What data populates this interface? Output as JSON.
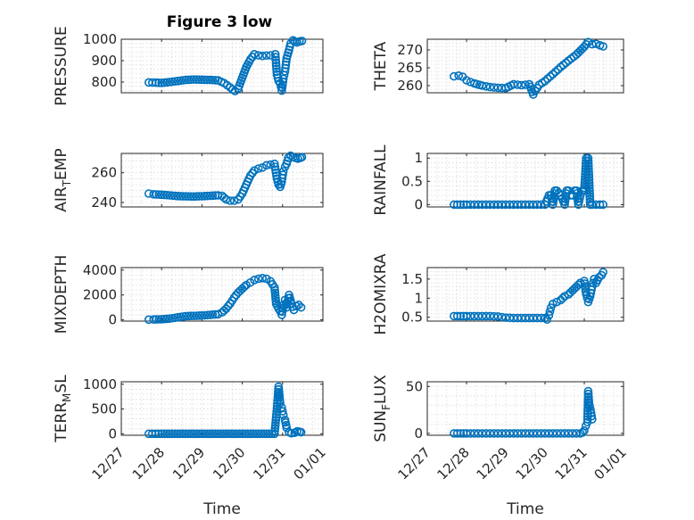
{
  "figure": {
    "title": "Figure 3 low"
  },
  "colors": {
    "marker": "#0072BD",
    "axis": "#262626"
  },
  "chart_data": [
    {
      "type": "scatter",
      "ylabel": "PRESSURE",
      "xlim": [
        0,
        5
      ],
      "ylim": [
        750,
        1000
      ],
      "yticks": [
        800,
        900,
        1000
      ],
      "yticklabels": [
        "800",
        "900",
        "1000"
      ],
      "xticks": [
        0,
        1,
        2,
        3,
        4,
        5
      ],
      "xticklabels": [
        "12/27",
        "12/28",
        "12/29",
        "12/30",
        "12/31",
        "01/01"
      ],
      "show_xticklabels": false,
      "xlabel": "",
      "grid": true,
      "x": [
        0.68,
        0.86,
        1.0,
        1.2,
        1.4,
        1.6,
        1.8,
        2.0,
        2.2,
        2.4,
        2.55,
        2.7,
        2.76,
        2.82,
        2.9,
        3.0,
        3.1,
        3.2,
        3.3,
        3.4,
        3.5,
        3.6,
        3.7,
        3.82,
        3.86,
        3.9,
        3.94,
        3.98,
        4.02,
        4.06,
        4.1,
        4.16,
        4.2,
        4.26,
        4.3,
        4.36,
        4.42,
        4.48
      ],
      "y": [
        798,
        797,
        796,
        800,
        805,
        810,
        812,
        811,
        810,
        808,
        795,
        775,
        765,
        758,
        770,
        820,
        870,
        905,
        930,
        925,
        922,
        924,
        925,
        930,
        835,
        805,
        795,
        760,
        815,
        850,
        910,
        950,
        980,
        995,
        990,
        985,
        990,
        992
      ]
    },
    {
      "type": "scatter",
      "ylabel": "THETA",
      "xlim": [
        0,
        5
      ],
      "ylim": [
        258,
        273
      ],
      "yticks": [
        260,
        265,
        270
      ],
      "yticklabels": [
        "260",
        "265",
        "270"
      ],
      "xticks": [
        0,
        1,
        2,
        3,
        4,
        5
      ],
      "xticklabels": [
        "12/27",
        "12/28",
        "12/29",
        "12/30",
        "12/31",
        "01/01"
      ],
      "show_xticklabels": false,
      "xlabel": "",
      "grid": true,
      "x": [
        0.68,
        0.8,
        0.9,
        1.0,
        1.1,
        1.2,
        1.4,
        1.6,
        1.8,
        2.0,
        2.2,
        2.4,
        2.6,
        2.7,
        2.75,
        2.85,
        3.0,
        3.2,
        3.4,
        3.6,
        3.8,
        4.0,
        4.1,
        4.2,
        4.3,
        4.4,
        4.48
      ],
      "y": [
        262.6,
        262.8,
        262.5,
        261.5,
        261,
        260.6,
        260,
        259.6,
        259.4,
        259.3,
        260.4,
        260.1,
        260.4,
        257.5,
        258.5,
        260.2,
        261.3,
        263.2,
        265.2,
        267,
        268.7,
        270.9,
        272.2,
        271.6,
        271.7,
        271.3,
        271
      ]
    },
    {
      "type": "scatter",
      "ylabel": "AIR_TEMP",
      "ylabel_main": "AIR",
      "ylabel_sub": "T",
      "ylabel_rest": "EMP",
      "xlim": [
        0,
        5
      ],
      "ylim": [
        237,
        273
      ],
      "yticks": [
        240,
        260
      ],
      "yticklabels": [
        "240",
        "260"
      ],
      "xticks": [
        0,
        1,
        2,
        3,
        4,
        5
      ],
      "xticklabels": [
        "12/27",
        "12/28",
        "12/29",
        "12/30",
        "12/31",
        "01/01"
      ],
      "show_xticklabels": false,
      "xlabel": "",
      "grid": true,
      "x": [
        0.68,
        0.8,
        1.0,
        1.2,
        1.4,
        1.6,
        1.8,
        2.0,
        2.2,
        2.4,
        2.5,
        2.6,
        2.7,
        2.8,
        2.9,
        3.0,
        3.1,
        3.2,
        3.3,
        3.4,
        3.5,
        3.6,
        3.7,
        3.8,
        3.86,
        3.9,
        3.94,
        3.98,
        4.02,
        4.06,
        4.1,
        4.14,
        4.2,
        4.26,
        4.32,
        4.38,
        4.44,
        4.48
      ],
      "y": [
        246,
        245.5,
        245.2,
        244.8,
        244.3,
        244.1,
        244,
        244.2,
        244.5,
        244.8,
        244.5,
        242,
        241.2,
        241.2,
        242,
        246,
        252,
        258,
        261.5,
        262.8,
        263.5,
        265,
        265.5,
        266,
        256,
        252,
        250.5,
        254,
        261,
        264,
        266,
        270,
        271.5,
        270.5,
        270,
        269.5,
        270,
        270.5
      ]
    },
    {
      "type": "scatter",
      "ylabel": "RAINFALL",
      "xlim": [
        0,
        5
      ],
      "ylim": [
        -0.05,
        1.1
      ],
      "yticks": [
        0,
        0.5,
        1
      ],
      "yticklabels": [
        "0",
        "0.5",
        "1"
      ],
      "xticks": [
        0,
        1,
        2,
        3,
        4,
        5
      ],
      "xticklabels": [
        "12/27",
        "12/28",
        "12/29",
        "12/30",
        "12/31",
        "01/01"
      ],
      "show_xticklabels": false,
      "xlabel": "",
      "grid": true,
      "x": [
        0.68,
        0.85,
        1.0,
        1.2,
        1.4,
        1.6,
        1.8,
        2.0,
        2.2,
        2.4,
        2.6,
        2.8,
        2.9,
        3.0,
        3.1,
        3.15,
        3.2,
        3.25,
        3.3,
        3.4,
        3.5,
        3.55,
        3.6,
        3.65,
        3.7,
        3.75,
        3.8,
        3.85,
        3.9,
        3.95,
        4.0,
        4.05,
        4.1,
        4.15,
        4.2,
        4.3,
        4.4,
        4.48
      ],
      "y": [
        0,
        0,
        0,
        0,
        0,
        0,
        0,
        0,
        0,
        0,
        0,
        0,
        0,
        0,
        0.2,
        0.2,
        0,
        0.3,
        0.3,
        0.2,
        0,
        0.3,
        0.3,
        0.2,
        0.2,
        0.3,
        0.3,
        0,
        0.2,
        0.3,
        0.3,
        1,
        1,
        0,
        0,
        0,
        0,
        0
      ]
    },
    {
      "type": "scatter",
      "ylabel": "MIXDEPTH",
      "xlim": [
        0,
        5
      ],
      "ylim": [
        -100,
        4200
      ],
      "yticks": [
        0,
        2000,
        4000
      ],
      "yticklabels": [
        "0",
        "2000",
        "4000"
      ],
      "xticks": [
        0,
        1,
        2,
        3,
        4,
        5
      ],
      "xticklabels": [
        "12/27",
        "12/28",
        "12/29",
        "12/30",
        "12/31",
        "01/01"
      ],
      "show_xticklabels": false,
      "xlabel": "",
      "grid": true,
      "x": [
        0.68,
        0.8,
        1.0,
        1.2,
        1.4,
        1.6,
        1.8,
        2.0,
        2.2,
        2.4,
        2.5,
        2.6,
        2.7,
        2.8,
        2.9,
        3.0,
        3.1,
        3.2,
        3.3,
        3.4,
        3.5,
        3.6,
        3.7,
        3.8,
        3.84,
        3.9,
        3.94,
        3.98,
        4.02,
        4.06,
        4.1,
        4.16,
        4.22,
        4.28,
        4.34,
        4.4,
        4.46
      ],
      "y": [
        20,
        30,
        50,
        100,
        200,
        300,
        320,
        350,
        400,
        450,
        600,
        900,
        1300,
        1800,
        2200,
        2500,
        2800,
        3000,
        3200,
        3300,
        3350,
        3300,
        3100,
        2600,
        1300,
        900,
        700,
        400,
        1200,
        1600,
        1000,
        2000,
        1300,
        800,
        1100,
        1200,
        1000
      ]
    },
    {
      "type": "scatter",
      "ylabel": "H2OMIXRA",
      "xlim": [
        0,
        5
      ],
      "ylim": [
        0.4,
        1.8
      ],
      "yticks": [
        0.5,
        1,
        1.5
      ],
      "yticklabels": [
        "0.5",
        "1",
        "1.5"
      ],
      "xticks": [
        0,
        1,
        2,
        3,
        4,
        5
      ],
      "xticklabels": [
        "12/27",
        "12/28",
        "12/29",
        "12/30",
        "12/31",
        "01/01"
      ],
      "show_xticklabels": false,
      "xlabel": "",
      "grid": true,
      "x": [
        0.68,
        0.85,
        1.0,
        1.2,
        1.4,
        1.6,
        1.8,
        2.0,
        2.2,
        2.4,
        2.6,
        2.8,
        2.9,
        3.0,
        3.05,
        3.1,
        3.15,
        3.2,
        3.3,
        3.4,
        3.5,
        3.6,
        3.7,
        3.8,
        3.9,
        4.0,
        4.05,
        4.1,
        4.15,
        4.2,
        4.25,
        4.3,
        4.38,
        4.44,
        4.48
      ],
      "y": [
        0.53,
        0.53,
        0.53,
        0.53,
        0.53,
        0.53,
        0.52,
        0.49,
        0.48,
        0.48,
        0.48,
        0.48,
        0.48,
        0.48,
        0.44,
        0.55,
        0.75,
        0.85,
        0.9,
        0.95,
        1.05,
        1.1,
        1.2,
        1.3,
        1.4,
        1.45,
        1.1,
        0.9,
        1.05,
        1.3,
        1.5,
        1.4,
        1.55,
        1.6,
        1.68
      ]
    },
    {
      "type": "scatter",
      "ylabel": "TERR_MSL",
      "ylabel_main": "TERR",
      "ylabel_sub": "M",
      "ylabel_rest": "SL",
      "xlim": [
        0,
        5
      ],
      "ylim": [
        -30,
        1050
      ],
      "yticks": [
        0,
        500,
        1000
      ],
      "yticklabels": [
        "0",
        "500",
        "1000"
      ],
      "xticks": [
        0,
        1,
        2,
        3,
        4,
        5
      ],
      "xticklabels": [
        "12/27",
        "12/28",
        "12/29",
        "12/30",
        "12/31",
        "01/01"
      ],
      "show_xticklabels": true,
      "xlabel": "Time",
      "grid": true,
      "x": [
        0.68,
        0.85,
        1.0,
        1.2,
        1.4,
        1.6,
        1.8,
        2.0,
        2.2,
        2.4,
        2.6,
        2.8,
        3.0,
        3.2,
        3.4,
        3.6,
        3.8,
        3.86,
        3.9,
        3.94,
        3.98,
        4.02,
        4.06,
        4.1,
        4.16,
        4.22,
        4.3,
        4.36,
        4.42,
        4.46
      ],
      "y": [
        0,
        0,
        0,
        0,
        0,
        0,
        0,
        0,
        0,
        0,
        0,
        0,
        0,
        0,
        0,
        0,
        0,
        500,
        950,
        620,
        530,
        380,
        280,
        120,
        30,
        10,
        20,
        50,
        40,
        30
      ]
    },
    {
      "type": "scatter",
      "ylabel": "SUN_FLUX",
      "ylabel_main": "SUN",
      "ylabel_sub": "F",
      "ylabel_rest": "LUX",
      "xlim": [
        0,
        5
      ],
      "ylim": [
        -2,
        55
      ],
      "yticks": [
        0,
        50
      ],
      "yticklabels": [
        "0",
        "50"
      ],
      "xticks": [
        0,
        1,
        2,
        3,
        4,
        5
      ],
      "xticklabels": [
        "12/27",
        "12/28",
        "12/29",
        "12/30",
        "12/31",
        "01/01"
      ],
      "show_xticklabels": true,
      "xlabel": "Time",
      "grid": true,
      "x": [
        0.68,
        0.85,
        1.0,
        1.2,
        1.4,
        1.6,
        1.8,
        2.0,
        2.2,
        2.4,
        2.6,
        2.8,
        3.0,
        3.2,
        3.4,
        3.6,
        3.8,
        3.9,
        3.96,
        4.0,
        4.04,
        4.08,
        4.1,
        4.12,
        4.16,
        4.2
      ],
      "y": [
        0,
        0,
        0,
        0,
        0,
        0,
        0,
        0,
        0,
        0,
        0,
        0,
        0,
        0,
        0,
        0,
        0,
        0,
        1,
        3,
        8,
        12,
        45,
        33,
        25,
        15
      ]
    }
  ]
}
